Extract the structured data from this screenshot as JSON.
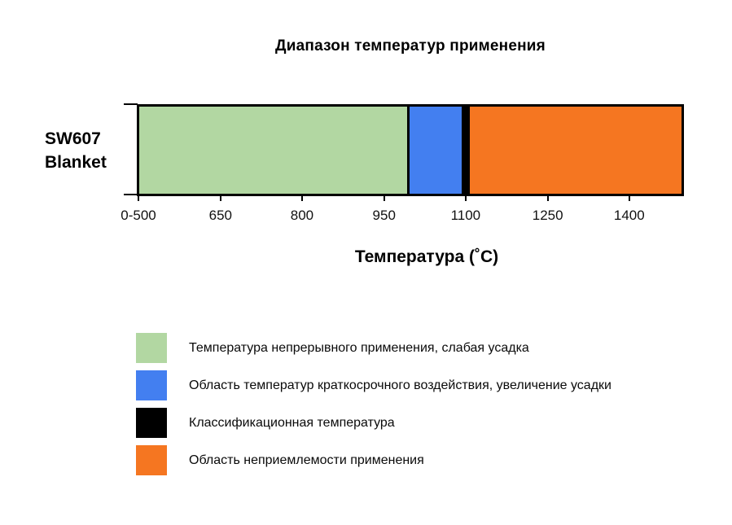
{
  "title": "Диапазон температур применения",
  "bar": {
    "label_lines": [
      "SW607",
      "Blanket"
    ],
    "segments": [
      {
        "name": "continuous-use-green",
        "color": "#b2d7a2",
        "width_pct": 49.4
      },
      {
        "name": "divider-black",
        "color": "#000000",
        "width_pct": 0.45
      },
      {
        "name": "short-term-blue",
        "color": "#437ff0",
        "width_pct": 9.6
      },
      {
        "name": "classification-black",
        "color": "#000000",
        "width_pct": 1.5
      },
      {
        "name": "unacceptable-orange",
        "color": "#f57621",
        "width_pct": 39.05
      }
    ]
  },
  "axis": {
    "title": "Температура (˚C)",
    "ticks": [
      {
        "label": "0-500",
        "pct": 0.3
      },
      {
        "label": "650",
        "pct": 15.3
      },
      {
        "label": "800",
        "pct": 30.2
      },
      {
        "label": "950",
        "pct": 45.2
      },
      {
        "label": "1100",
        "pct": 60.1
      },
      {
        "label": "1250",
        "pct": 75.1
      },
      {
        "label": "1400",
        "pct": 90.0
      }
    ]
  },
  "legend": {
    "items": [
      {
        "name": "continuous-use",
        "color": "#b2d7a2",
        "label": "Температура непрерывного применения, слабая усадка"
      },
      {
        "name": "short-term",
        "color": "#437ff0",
        "label": "Область температур краткосрочного воздействия, увеличение усадки"
      },
      {
        "name": "classification",
        "color": "#000000",
        "label": "Классификационная температура"
      },
      {
        "name": "unacceptable",
        "color": "#f57621",
        "label": "Область неприемлемости применения"
      }
    ]
  },
  "chart_data": {
    "type": "bar",
    "orientation": "horizontal-stacked",
    "title": "Диапазон температур применения",
    "xlabel": "Температура (˚C)",
    "categories": [
      "SW607 Blanket"
    ],
    "x_tick_labels": [
      "0-500",
      "650",
      "800",
      "950",
      "1100",
      "1250",
      "1400"
    ],
    "x_axis_note": "first bin 0-500 compressed at origin; 150 °C per tick; bar ends at ~1500",
    "series": [
      {
        "name": "Температура непрерывного применения, слабая усадка",
        "color": "#b2d7a2",
        "from_c": "0-500",
        "to_c": 1000
      },
      {
        "name": "Область температур краткосрочного воздействия, увеличение усадки",
        "color": "#437ff0",
        "from_c": 1000,
        "to_c": 1090
      },
      {
        "name": "Классификационная температура",
        "color": "#000000",
        "from_c": 1090,
        "to_c": 1110,
        "value_c": 1100
      },
      {
        "name": "Область неприемлемости применения",
        "color": "#f57621",
        "from_c": 1110,
        "to_c": 1500
      }
    ],
    "legend_position": "below-left",
    "grid": false
  }
}
